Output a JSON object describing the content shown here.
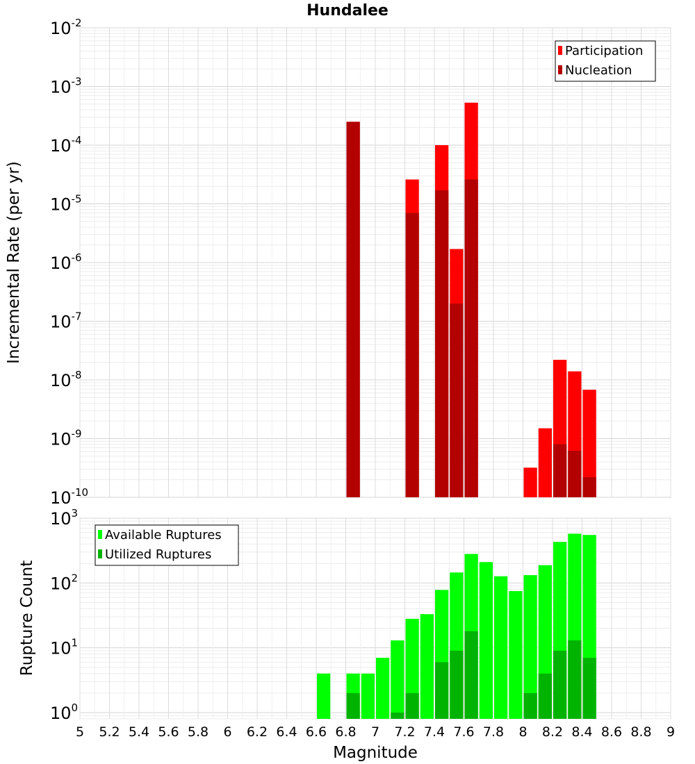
{
  "colors": {
    "participation": "#ff0000",
    "nucleation": "#b30000",
    "available": "#00ff00",
    "utilized": "#00b300"
  },
  "chart_data": [
    {
      "type": "bar",
      "title": "Hundalee",
      "ylabel": "Incremental Rate (per yr)",
      "xlabel": "",
      "yscale": "log",
      "ylim": [
        1e-10,
        0.01
      ],
      "xlim": [
        5,
        9
      ],
      "bin_width": 0.1,
      "grid": true,
      "legend_position": "top-right",
      "y_ticks": [
        {
          "base": "10",
          "exp": "-2"
        },
        {
          "base": "10",
          "exp": "-3"
        },
        {
          "base": "10",
          "exp": "-4"
        },
        {
          "base": "10",
          "exp": "-5"
        },
        {
          "base": "10",
          "exp": "-6"
        },
        {
          "base": "10",
          "exp": "-7"
        },
        {
          "base": "10",
          "exp": "-8"
        },
        {
          "base": "10",
          "exp": "-9"
        },
        {
          "base": "10",
          "exp": "-10"
        }
      ],
      "x": [
        6.85,
        7.25,
        7.45,
        7.55,
        7.65,
        8.05,
        8.15,
        8.25,
        8.35,
        8.45
      ],
      "series": [
        {
          "name": "Participation",
          "values": [
            0.00025,
            2.6e-05,
            0.0001,
            1.7e-06,
            0.00053,
            3.2e-10,
            1.5e-09,
            2.2e-08,
            1.4e-08,
            6.8e-09
          ]
        },
        {
          "name": "Nucleation",
          "values": [
            0.00025,
            7e-06,
            1.7e-05,
            2e-07,
            2.6e-05,
            null,
            null,
            8e-10,
            6.2e-10,
            2.2e-10
          ]
        }
      ]
    },
    {
      "type": "bar",
      "title": "",
      "ylabel": "Rupture Count",
      "xlabel": "Magnitude",
      "yscale": "log",
      "ylim": [
        0.8,
        1000
      ],
      "xlim": [
        5,
        9
      ],
      "bin_width": 0.1,
      "grid": true,
      "legend_position": "top-left",
      "y_ticks": [
        {
          "base": "10",
          "exp": "3",
          "value": 1000
        },
        {
          "base": "10",
          "exp": "2",
          "value": 100
        },
        {
          "base": "10",
          "exp": "1",
          "value": 10
        },
        {
          "base": "10",
          "exp": "0",
          "value": 1
        }
      ],
      "x_ticks": [
        "5",
        "5.2",
        "5.4",
        "5.6",
        "5.8",
        "6",
        "6.2",
        "6.4",
        "6.6",
        "6.8",
        "7",
        "7.2",
        "7.4",
        "7.6",
        "7.8",
        "8",
        "8.2",
        "8.4",
        "8.6",
        "8.8",
        "9"
      ],
      "x": [
        6.65,
        6.85,
        6.95,
        7.05,
        7.15,
        7.25,
        7.35,
        7.45,
        7.55,
        7.65,
        7.75,
        7.85,
        7.95,
        8.05,
        8.15,
        8.25,
        8.35,
        8.45
      ],
      "series": [
        {
          "name": "Available Ruptures",
          "values": [
            4,
            4,
            4,
            7,
            13,
            28,
            33,
            78,
            145,
            280,
            210,
            127,
            75,
            132,
            188,
            430,
            575,
            550
          ]
        },
        {
          "name": "Utilized Ruptures",
          "values": [
            null,
            2,
            null,
            null,
            1,
            2,
            null,
            6,
            9,
            18,
            null,
            null,
            null,
            2,
            4,
            9,
            13,
            7
          ]
        }
      ]
    }
  ]
}
